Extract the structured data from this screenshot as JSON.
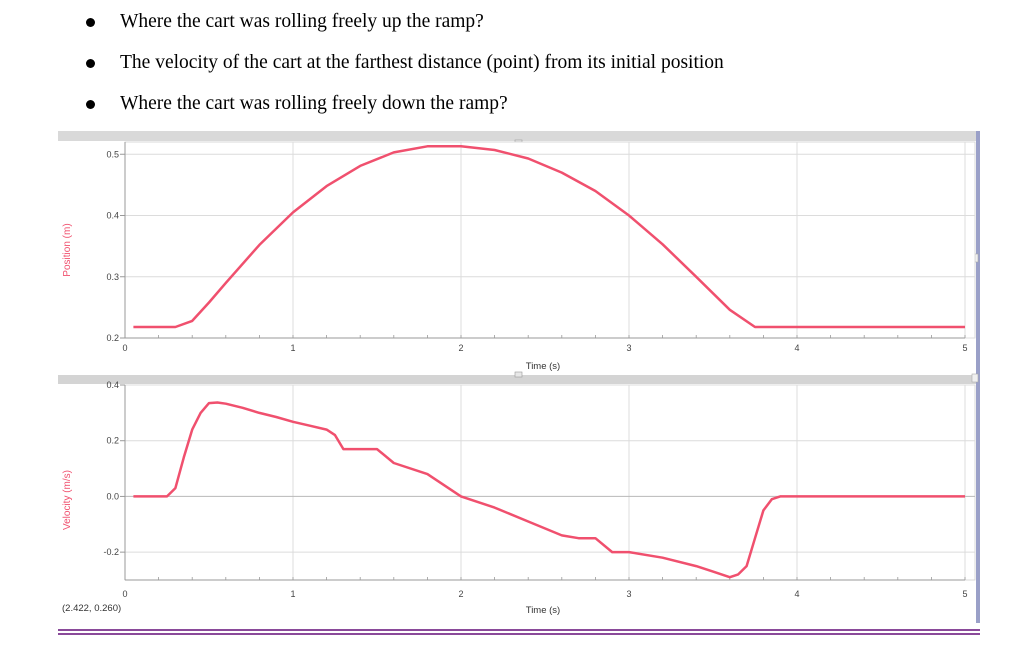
{
  "questions": [
    "Where the cart was rolling freely up the ramp?",
    "The velocity of the cart at the farthest distance (point) from its initial position",
    "Where the cart was rolling freely down the ramp?"
  ],
  "readout": "(2.422, 0.260)",
  "colors": {
    "trace": "#f0506e",
    "grid": "#dcdcdc",
    "frame": "#9aa0c8",
    "toolbar": "#d4d4d4",
    "bottom_rule": "#8a4a9a"
  },
  "chart_data": [
    {
      "type": "line",
      "xlabel": "Time (s)",
      "ylabel": "Position (m)",
      "xlim": [
        0,
        5
      ],
      "ylim": [
        0.2,
        0.52
      ],
      "x_ticks": [
        0,
        1,
        2,
        3,
        4,
        5
      ],
      "y_ticks": [
        0.2,
        0.3,
        0.4,
        0.5
      ],
      "y_tick_labels": [
        "0.2",
        "0.3",
        "0.4",
        "0.5"
      ],
      "grid": true,
      "series": [
        {
          "x": [
            0.05,
            0.3,
            0.4,
            0.5,
            0.6,
            0.8,
            1.0,
            1.2,
            1.4,
            1.6,
            1.8,
            2.0,
            2.2,
            2.4,
            2.6,
            2.8,
            3.0,
            3.2,
            3.4,
            3.6,
            3.75,
            3.85,
            4.2,
            4.6,
            5.0
          ],
          "y": [
            0.218,
            0.218,
            0.228,
            0.258,
            0.29,
            0.352,
            0.405,
            0.448,
            0.481,
            0.503,
            0.513,
            0.513,
            0.507,
            0.493,
            0.47,
            0.44,
            0.4,
            0.353,
            0.3,
            0.246,
            0.218,
            0.218,
            0.218,
            0.218,
            0.218
          ]
        }
      ]
    },
    {
      "type": "line",
      "xlabel": "Time (s)",
      "ylabel": "Velocity (m/s)",
      "xlim": [
        0,
        5
      ],
      "ylim": [
        -0.3,
        0.4
      ],
      "x_ticks": [
        0,
        1,
        2,
        3,
        4,
        5
      ],
      "y_ticks": [
        -0.2,
        0.0,
        0.2,
        0.4
      ],
      "y_tick_labels": [
        "-0.2",
        "0.0",
        "0.2",
        "0.4"
      ],
      "grid": true,
      "series": [
        {
          "x": [
            0.05,
            0.25,
            0.3,
            0.35,
            0.4,
            0.45,
            0.5,
            0.55,
            0.6,
            0.7,
            0.8,
            0.9,
            1.0,
            1.1,
            1.2,
            1.25,
            1.3,
            1.4,
            1.5,
            1.6,
            1.8,
            2.0,
            2.2,
            2.4,
            2.6,
            2.7,
            2.8,
            2.9,
            3.0,
            3.2,
            3.4,
            3.5,
            3.6,
            3.65,
            3.7,
            3.75,
            3.8,
            3.85,
            3.9,
            4.2,
            4.6,
            5.0
          ],
          "y": [
            0.0,
            0.0,
            0.03,
            0.14,
            0.24,
            0.3,
            0.335,
            0.337,
            0.333,
            0.318,
            0.3,
            0.285,
            0.268,
            0.254,
            0.24,
            0.22,
            0.17,
            0.17,
            0.17,
            0.12,
            0.08,
            0.0,
            -0.04,
            -0.09,
            -0.14,
            -0.15,
            -0.15,
            -0.2,
            -0.2,
            -0.22,
            -0.25,
            -0.27,
            -0.29,
            -0.28,
            -0.25,
            -0.15,
            -0.05,
            -0.01,
            0.0,
            0.0,
            0.0,
            0.0
          ]
        }
      ]
    }
  ]
}
